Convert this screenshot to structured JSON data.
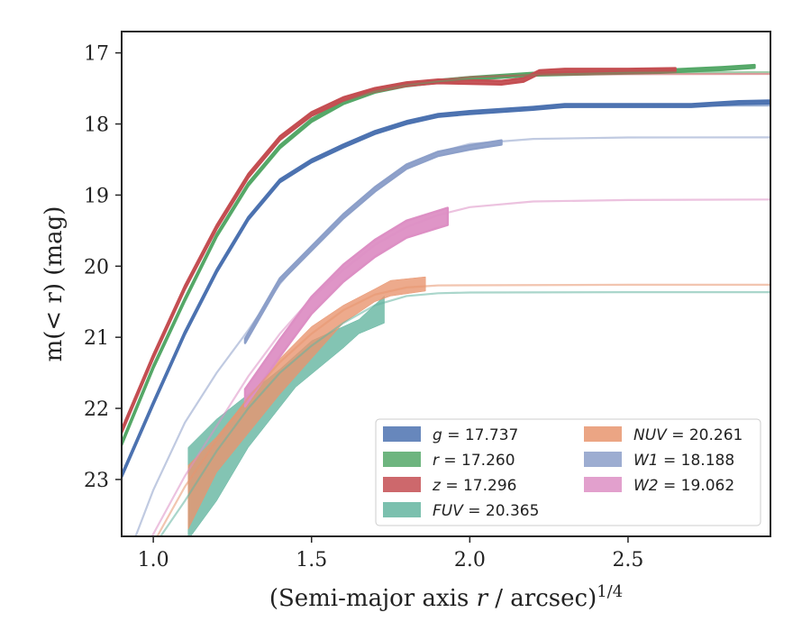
{
  "chart_data": {
    "type": "line",
    "xlabel_main": "(Semi-major axis ",
    "xlabel_var": "r",
    "xlabel_rest": " / arcsec)",
    "xlabel_sup": "1/4",
    "ylabel": "m(< r) (mag)",
    "xlim": [
      0.9,
      2.95
    ],
    "ylim": [
      23.8,
      16.7
    ],
    "y_inverted": true,
    "grid": false,
    "legend_position": "lower-right",
    "x_ticks": [
      1.0,
      1.5,
      2.0,
      2.5
    ],
    "x_tick_labels": [
      "1.0",
      "1.5",
      "2.0",
      "2.5"
    ],
    "y_ticks": [
      17,
      18,
      19,
      20,
      21,
      22,
      23
    ],
    "y_tick_labels": [
      "17",
      "18",
      "19",
      "20",
      "21",
      "22",
      "23"
    ],
    "series": [
      {
        "name": "g = 17.737",
        "band": "g",
        "value": "17.737",
        "color": "#4c72b0",
        "model_total": 17.737,
        "model_curve": [
          [
            0.9,
            22.95
          ],
          [
            1.0,
            21.93
          ],
          [
            1.1,
            20.94
          ],
          [
            1.2,
            20.07
          ],
          [
            1.3,
            19.33
          ],
          [
            1.4,
            18.8
          ],
          [
            1.5,
            18.52
          ],
          [
            1.6,
            18.31
          ],
          [
            1.7,
            18.12
          ],
          [
            1.8,
            17.98
          ],
          [
            1.9,
            17.88
          ],
          [
            2.0,
            17.82
          ],
          [
            2.2,
            17.77
          ],
          [
            2.5,
            17.745
          ],
          [
            2.95,
            17.74
          ]
        ],
        "data_curve": [
          [
            0.9,
            22.95
          ],
          [
            1.0,
            21.93
          ],
          [
            1.1,
            20.94
          ],
          [
            1.2,
            20.07
          ],
          [
            1.3,
            19.33
          ],
          [
            1.4,
            18.8
          ],
          [
            1.5,
            18.52
          ],
          [
            1.6,
            18.31
          ],
          [
            1.7,
            18.12
          ],
          [
            1.8,
            17.98
          ],
          [
            1.9,
            17.88
          ],
          [
            2.0,
            17.84
          ],
          [
            2.2,
            17.78
          ],
          [
            2.3,
            17.74
          ],
          [
            2.5,
            17.74
          ],
          [
            2.7,
            17.74
          ],
          [
            2.85,
            17.7
          ],
          [
            2.95,
            17.69
          ]
        ],
        "band_halfwidth": 0.02
      },
      {
        "name": "r = 17.260",
        "band": "r",
        "value": "17.260",
        "color": "#55a868",
        "model_total": 17.26,
        "model_curve": [
          [
            0.9,
            22.5
          ],
          [
            1.0,
            21.42
          ],
          [
            1.1,
            20.47
          ],
          [
            1.2,
            19.57
          ],
          [
            1.3,
            18.85
          ],
          [
            1.4,
            18.32
          ],
          [
            1.5,
            17.95
          ],
          [
            1.6,
            17.7
          ],
          [
            1.7,
            17.54
          ],
          [
            1.8,
            17.45
          ],
          [
            1.9,
            17.4
          ],
          [
            2.0,
            17.36
          ],
          [
            2.2,
            17.31
          ],
          [
            2.5,
            17.28
          ],
          [
            2.95,
            17.27
          ]
        ],
        "data_curve": [
          [
            0.9,
            22.5
          ],
          [
            1.0,
            21.42
          ],
          [
            1.1,
            20.47
          ],
          [
            1.2,
            19.57
          ],
          [
            1.3,
            18.85
          ],
          [
            1.4,
            18.32
          ],
          [
            1.5,
            17.95
          ],
          [
            1.6,
            17.7
          ],
          [
            1.7,
            17.54
          ],
          [
            1.8,
            17.45
          ],
          [
            1.9,
            17.4
          ],
          [
            2.0,
            17.36
          ],
          [
            2.2,
            17.3
          ],
          [
            2.4,
            17.28
          ],
          [
            2.6,
            17.26
          ],
          [
            2.8,
            17.22
          ],
          [
            2.9,
            17.19
          ]
        ],
        "band_halfwidth": 0.02
      },
      {
        "name": "z = 17.296",
        "band": "z",
        "value": "17.296",
        "color": "#c44e52",
        "model_total": 17.296,
        "model_curve": [
          [
            0.9,
            22.32
          ],
          [
            1.0,
            21.27
          ],
          [
            1.1,
            20.3
          ],
          [
            1.2,
            19.45
          ],
          [
            1.3,
            18.73
          ],
          [
            1.4,
            18.2
          ],
          [
            1.5,
            17.86
          ],
          [
            1.6,
            17.65
          ],
          [
            1.7,
            17.52
          ],
          [
            1.8,
            17.44
          ],
          [
            1.9,
            17.38
          ],
          [
            2.0,
            17.34
          ],
          [
            2.2,
            17.31
          ],
          [
            2.5,
            17.3
          ],
          [
            2.95,
            17.296
          ]
        ],
        "data_curve": [
          [
            0.9,
            22.32
          ],
          [
            1.0,
            21.27
          ],
          [
            1.1,
            20.3
          ],
          [
            1.2,
            19.45
          ],
          [
            1.3,
            18.73
          ],
          [
            1.4,
            18.2
          ],
          [
            1.5,
            17.86
          ],
          [
            1.6,
            17.65
          ],
          [
            1.7,
            17.52
          ],
          [
            1.8,
            17.44
          ],
          [
            1.9,
            17.4
          ],
          [
            2.0,
            17.41
          ],
          [
            2.1,
            17.42
          ],
          [
            2.17,
            17.38
          ],
          [
            2.22,
            17.27
          ],
          [
            2.3,
            17.25
          ],
          [
            2.5,
            17.25
          ],
          [
            2.65,
            17.24
          ]
        ],
        "band_halfwidth": 0.025
      },
      {
        "name": "FUV = 20.365",
        "band": "FUV",
        "value": "20.365",
        "color": "#64b5a0",
        "model_total": 20.365,
        "model_curve": [
          [
            1.0,
            23.95
          ],
          [
            1.1,
            23.3
          ],
          [
            1.2,
            22.6
          ],
          [
            1.3,
            22.0
          ],
          [
            1.4,
            21.5
          ],
          [
            1.5,
            21.12
          ],
          [
            1.6,
            20.8
          ],
          [
            1.7,
            20.55
          ],
          [
            1.8,
            20.42
          ],
          [
            1.9,
            20.38
          ],
          [
            2.0,
            20.37
          ],
          [
            2.5,
            20.365
          ],
          [
            2.95,
            20.365
          ]
        ],
        "band_lower": [
          [
            1.11,
            22.55
          ],
          [
            1.2,
            22.15
          ],
          [
            1.3,
            21.8
          ],
          [
            1.4,
            21.45
          ],
          [
            1.5,
            21.05
          ],
          [
            1.6,
            20.85
          ],
          [
            1.65,
            20.75
          ],
          [
            1.73,
            20.42
          ]
        ],
        "band_upper": [
          [
            1.73,
            20.8
          ],
          [
            1.65,
            20.95
          ],
          [
            1.6,
            21.15
          ],
          [
            1.45,
            21.7
          ],
          [
            1.3,
            22.55
          ],
          [
            1.2,
            23.3
          ],
          [
            1.11,
            23.85
          ]
        ]
      },
      {
        "name": "NUV = 20.261",
        "band": "NUV",
        "value": "20.261",
        "color": "#e8956f",
        "model_total": 20.261,
        "model_curve": [
          [
            1.0,
            23.9
          ],
          [
            1.1,
            23.1
          ],
          [
            1.2,
            22.45
          ],
          [
            1.3,
            21.85
          ],
          [
            1.4,
            21.35
          ],
          [
            1.5,
            20.95
          ],
          [
            1.6,
            20.62
          ],
          [
            1.7,
            20.4
          ],
          [
            1.8,
            20.3
          ],
          [
            1.9,
            20.27
          ],
          [
            2.5,
            20.261
          ],
          [
            2.95,
            20.261
          ]
        ],
        "band_lower": [
          [
            1.11,
            22.8
          ],
          [
            1.2,
            22.4
          ],
          [
            1.3,
            21.85
          ],
          [
            1.4,
            21.3
          ],
          [
            1.5,
            20.85
          ],
          [
            1.6,
            20.55
          ],
          [
            1.7,
            20.32
          ],
          [
            1.75,
            20.2
          ],
          [
            1.86,
            20.15
          ]
        ],
        "band_upper": [
          [
            1.86,
            20.35
          ],
          [
            1.75,
            20.42
          ],
          [
            1.7,
            20.5
          ],
          [
            1.6,
            20.8
          ],
          [
            1.5,
            21.3
          ],
          [
            1.4,
            21.8
          ],
          [
            1.3,
            22.35
          ],
          [
            1.2,
            22.9
          ],
          [
            1.11,
            23.7
          ]
        ]
      },
      {
        "name": "W1 = 18.188",
        "band": "W1",
        "value": "18.188",
        "color": "#8c9fc9",
        "model_total": 18.188,
        "model_curve": [
          [
            0.94,
            23.85
          ],
          [
            1.0,
            23.15
          ],
          [
            1.1,
            22.2
          ],
          [
            1.2,
            21.5
          ],
          [
            1.3,
            20.9
          ],
          [
            1.4,
            20.25
          ],
          [
            1.5,
            19.72
          ],
          [
            1.6,
            19.28
          ],
          [
            1.7,
            18.9
          ],
          [
            1.8,
            18.6
          ],
          [
            1.9,
            18.4
          ],
          [
            2.0,
            18.28
          ],
          [
            2.2,
            18.21
          ],
          [
            2.5,
            18.19
          ],
          [
            2.95,
            18.188
          ]
        ],
        "data_curve": [
          [
            1.29,
            21.05
          ],
          [
            1.4,
            20.2
          ],
          [
            1.5,
            19.75
          ],
          [
            1.6,
            19.3
          ],
          [
            1.7,
            18.92
          ],
          [
            1.8,
            18.6
          ],
          [
            1.9,
            18.42
          ],
          [
            2.0,
            18.33
          ],
          [
            2.1,
            18.26
          ]
        ],
        "band_halfwidth": 0.03
      },
      {
        "name": "W2 = 19.062",
        "band": "W2",
        "value": "19.062",
        "color": "#dd8fc4",
        "model_total": 19.062,
        "model_curve": [
          [
            0.99,
            23.85
          ],
          [
            1.1,
            22.95
          ],
          [
            1.2,
            22.25
          ],
          [
            1.3,
            21.55
          ],
          [
            1.4,
            20.95
          ],
          [
            1.5,
            20.45
          ],
          [
            1.6,
            20.05
          ],
          [
            1.7,
            19.7
          ],
          [
            1.8,
            19.45
          ],
          [
            1.9,
            19.28
          ],
          [
            2.0,
            19.17
          ],
          [
            2.2,
            19.09
          ],
          [
            2.5,
            19.07
          ],
          [
            2.95,
            19.062
          ]
        ],
        "data_curve": [
          [
            1.29,
            21.85
          ],
          [
            1.4,
            21.15
          ],
          [
            1.5,
            20.55
          ],
          [
            1.6,
            20.1
          ],
          [
            1.7,
            19.75
          ],
          [
            1.8,
            19.48
          ],
          [
            1.93,
            19.3
          ]
        ],
        "band_halfwidth": 0.12
      }
    ]
  }
}
